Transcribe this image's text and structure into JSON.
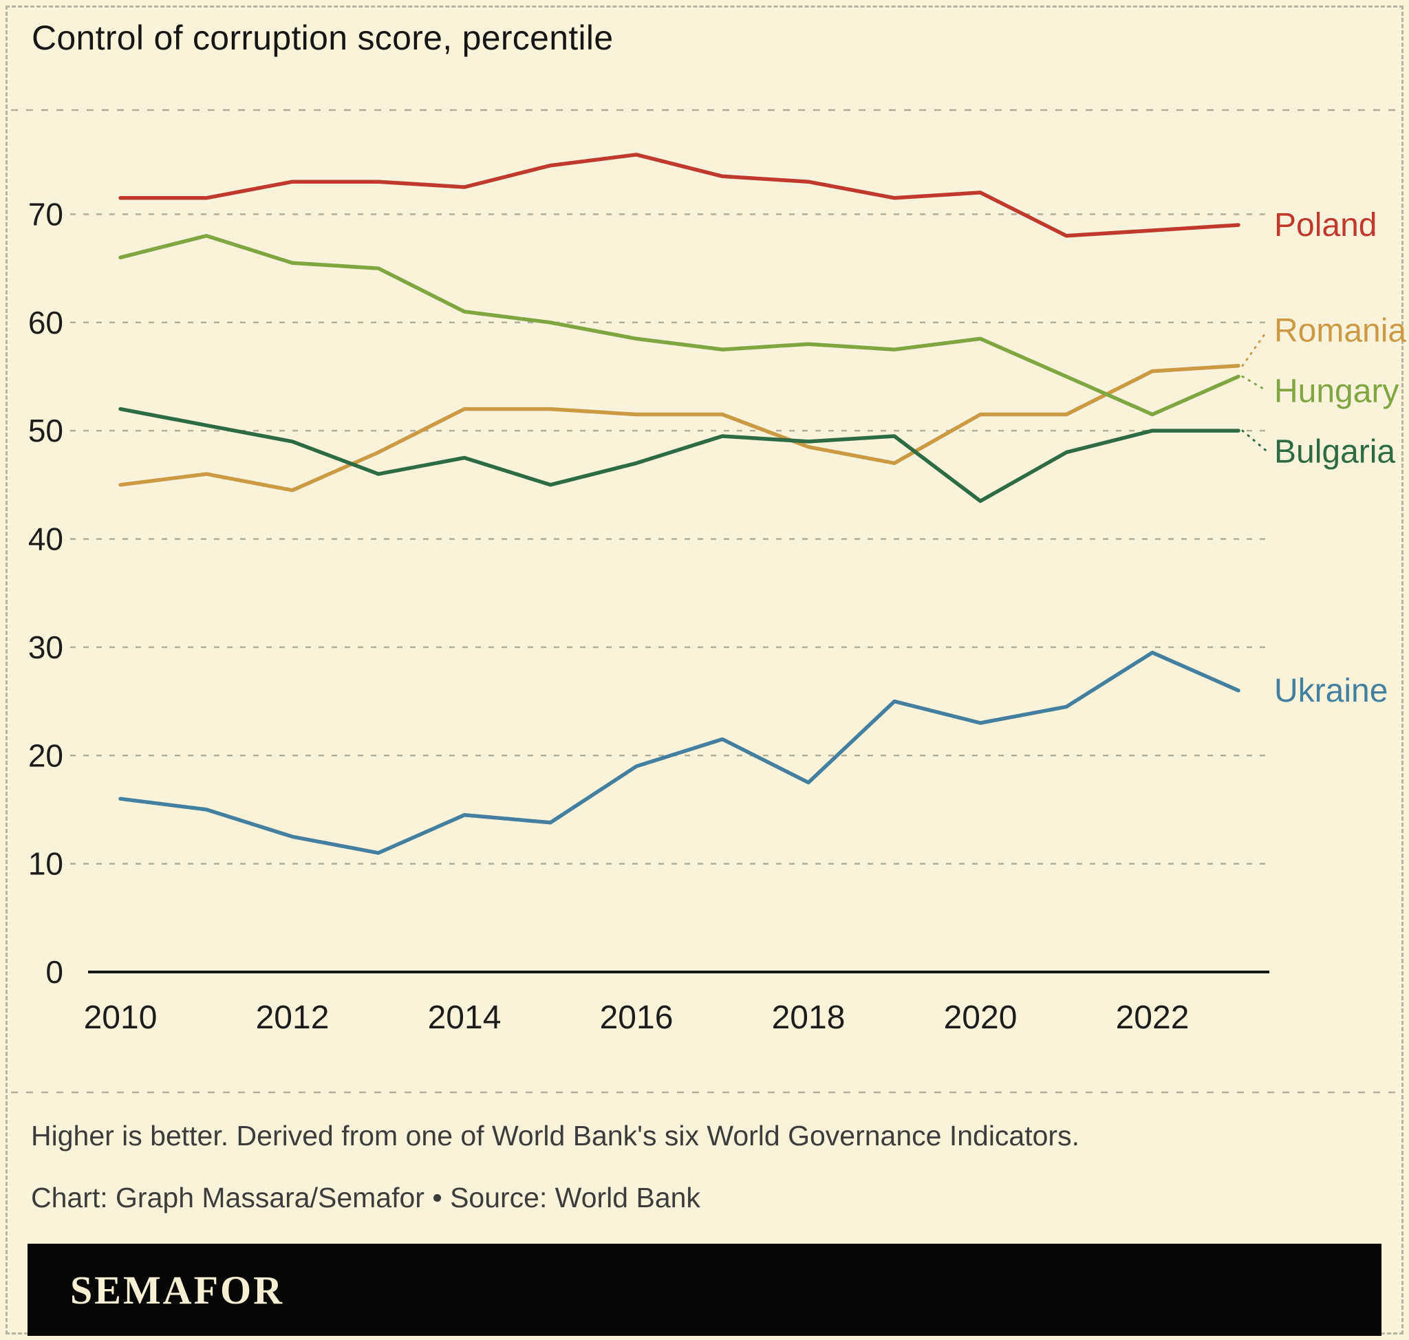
{
  "title": "Control of corruption score, percentile",
  "footnote": "Higher is better. Derived from one of World Bank's six World Governance Indicators.",
  "credit": "Chart: Graph Massara/Semafor • Source: World Bank",
  "logo": "SEMAFOR",
  "colors": {
    "background": "#f9f3dc",
    "grid": "#b3ad9c",
    "axis": "#161616",
    "tick_text": "#1c1c1c"
  },
  "chart_data": {
    "type": "line",
    "title": "Control of corruption score, percentile",
    "xlabel": "",
    "ylabel": "Control of corruption score, percentile",
    "x": [
      2010,
      2011,
      2012,
      2013,
      2014,
      2015,
      2016,
      2017,
      2018,
      2019,
      2020,
      2021,
      2022,
      2023
    ],
    "x_ticks": [
      2010,
      2012,
      2014,
      2016,
      2018,
      2020,
      2022
    ],
    "y_ticks": [
      0,
      10,
      20,
      30,
      40,
      50,
      60,
      70
    ],
    "ylim": [
      0,
      80
    ],
    "grid": "dashed-horizontal",
    "legend_position": "right-end-labels",
    "series": [
      {
        "name": "Poland",
        "color": "#c0392b",
        "values": [
          71.5,
          71.5,
          73,
          73,
          72.5,
          74.5,
          75.5,
          73.5,
          73,
          71.5,
          72,
          68,
          68.5,
          69
        ]
      },
      {
        "name": "Romania",
        "color": "#cc9944",
        "values": [
          45,
          46,
          44.5,
          48,
          52,
          52,
          51.5,
          51.5,
          48.5,
          47,
          51.5,
          51.5,
          55.5,
          56
        ]
      },
      {
        "name": "Hungary",
        "color": "#7fa640",
        "values": [
          66,
          68,
          65.5,
          65,
          61,
          60,
          58.5,
          57.5,
          58,
          57.5,
          58.5,
          55,
          51.5,
          55
        ]
      },
      {
        "name": "Bulgaria",
        "color": "#2e6b45",
        "values": [
          52,
          50.5,
          49,
          46,
          47.5,
          45,
          47,
          49.5,
          49,
          49.5,
          43.5,
          48,
          50,
          50
        ]
      },
      {
        "name": "Ukraine",
        "color": "#457f9e",
        "values": [
          16,
          15,
          12.5,
          11,
          14.5,
          13.8,
          19,
          21.5,
          17.5,
          25,
          23,
          24.5,
          29.5,
          26
        ]
      }
    ]
  }
}
